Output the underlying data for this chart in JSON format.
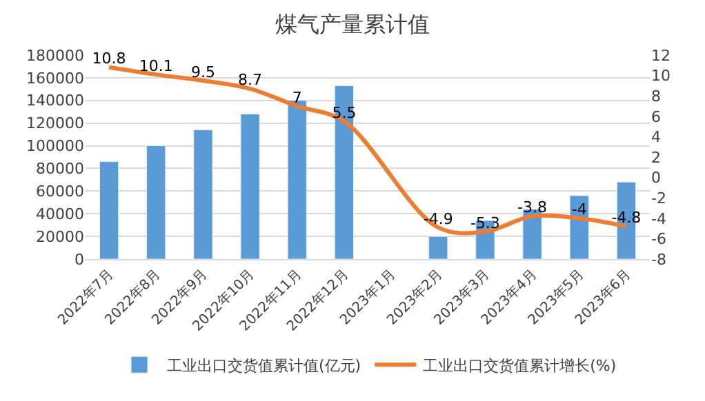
{
  "chart_data": {
    "type": "bar",
    "title": "煤气产量累计值",
    "categories": [
      "2022年7月",
      "2022年8月",
      "2022年9月",
      "2022年10月",
      "2022年11月",
      "2022年12月",
      "2023年1月",
      "2023年2月",
      "2023年3月",
      "2023年4月",
      "2023年5月",
      "2023年6月"
    ],
    "series": [
      {
        "name": "工业出口交货值累计值(亿元)",
        "color": "#5b9bd5",
        "values": [
          86000,
          100000,
          114000,
          128000,
          140000,
          153000,
          null,
          20000,
          34000,
          44000,
          56000,
          68000
        ]
      },
      {
        "name": "工业出口交货值累计增长(%)",
        "type": "line",
        "axis": "y2",
        "color": "#ed7d31",
        "values": [
          10.8,
          10.1,
          9.5,
          8.7,
          7,
          5.5,
          null,
          -4.9,
          -5.3,
          -3.8,
          -4,
          -4.8
        ],
        "data_labels": true
      }
    ],
    "ylim": [
      0,
      180000
    ],
    "yticks": [
      0,
      20000,
      40000,
      60000,
      80000,
      100000,
      120000,
      140000,
      160000,
      180000
    ],
    "y2lim": [
      -8,
      12
    ],
    "y2ticks": [
      -8,
      -6,
      -4,
      -2,
      0,
      2,
      4,
      6,
      8,
      10,
      12
    ],
    "grid": "y",
    "legend": "bottom"
  }
}
